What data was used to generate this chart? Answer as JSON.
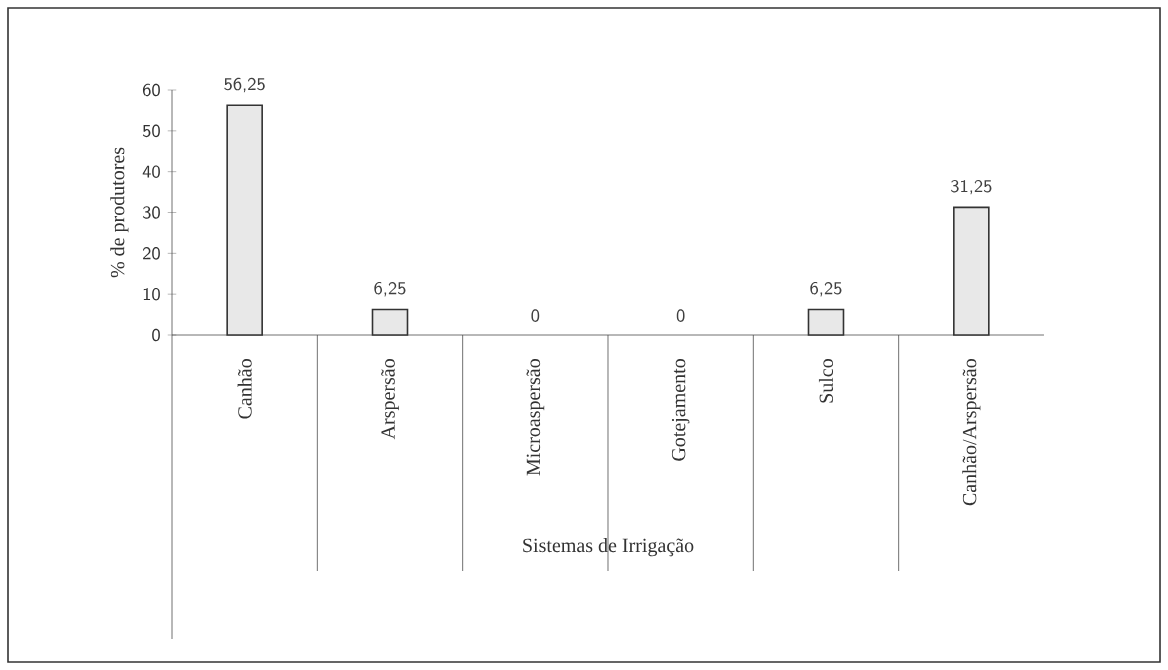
{
  "chart_data": {
    "type": "bar",
    "xlabel": "Sistemas de Irrigação",
    "ylabel": "% de produtores",
    "categories": [
      "Canhão",
      "Arspersão",
      "Microaspersão",
      "Gotejamento",
      "Sulco",
      "Canhão/Arspersão"
    ],
    "values": [
      56.25,
      6.25,
      0,
      0,
      6.25,
      31.25
    ],
    "value_labels": [
      "56,25",
      "6,25",
      "0",
      "0",
      "6,25",
      "31,25"
    ],
    "color": "#e8e8e8",
    "ylim": [
      0,
      60
    ],
    "yticks": [
      0,
      10,
      20,
      30,
      40,
      50,
      60
    ]
  }
}
